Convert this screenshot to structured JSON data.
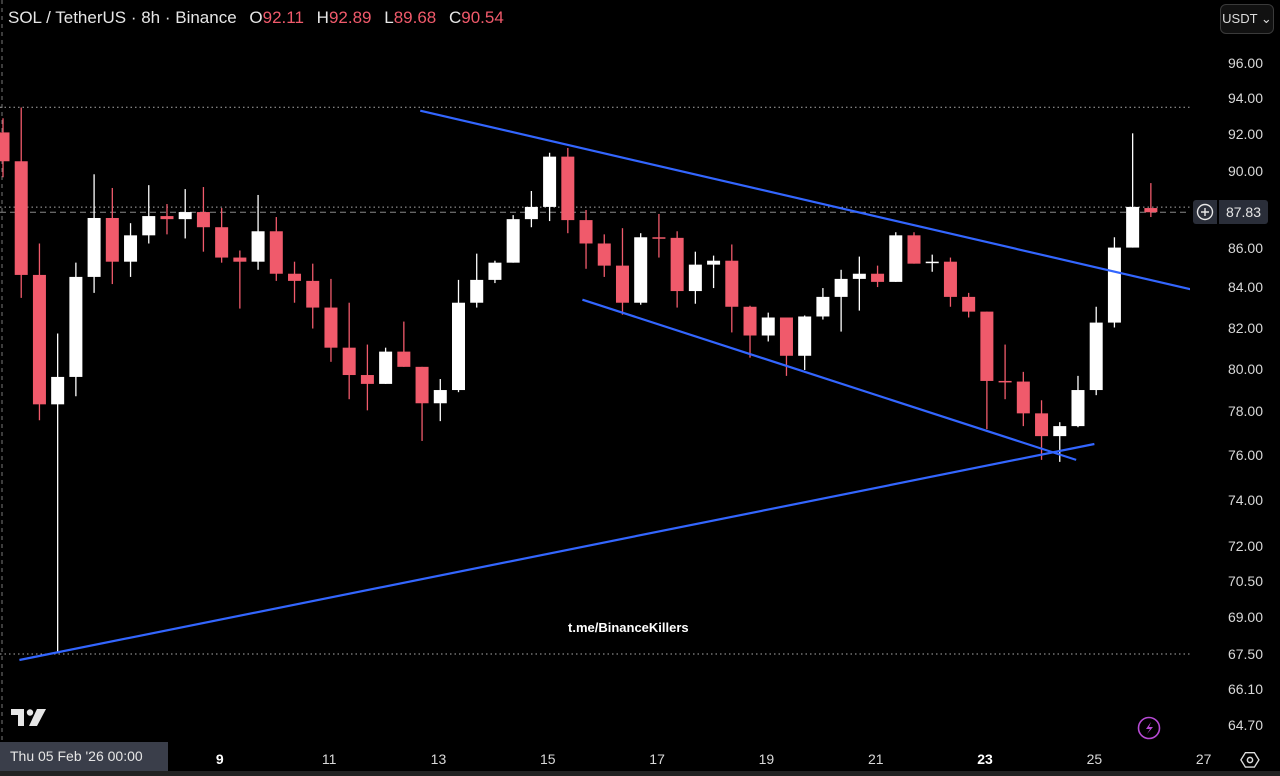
{
  "header": {
    "symbol": "SOL / TetherUS · 8h · Binance",
    "ohlc": [
      {
        "key": "O",
        "value": "92.11"
      },
      {
        "key": "H",
        "value": "92.89"
      },
      {
        "key": "L",
        "value": "89.68"
      },
      {
        "key": "C",
        "value": "90.54"
      }
    ]
  },
  "currency_button": "USDT ⌄",
  "last_price": "87.83",
  "crosshair_date": "Thu 05 Feb '26   00:00",
  "watermark": "t.me/BinanceKillers",
  "colors": {
    "up": "#ffffff",
    "down": "#f05a6b",
    "trendline": "#3366ff",
    "bolt": "#b84ad6"
  },
  "chart_data": {
    "type": "candlestick",
    "title": "SOL / TetherUS · 8h · Binance",
    "interval": "8h",
    "scale": "log",
    "ylim": [
      64.7,
      96
    ],
    "y_ticks": [
      "96.00",
      "94.00",
      "92.00",
      "90.00",
      "86.00",
      "84.00",
      "82.00",
      "80.00",
      "78.00",
      "76.00",
      "74.00",
      "72.00",
      "70.50",
      "69.00",
      "67.50",
      "66.10",
      "64.70"
    ],
    "x_ticks": [
      {
        "label": "9",
        "candle": 11.9,
        "bold": true
      },
      {
        "label": "11",
        "candle": 17.9
      },
      {
        "label": "13",
        "candle": 23.9
      },
      {
        "label": "15",
        "candle": 29.9
      },
      {
        "label": "17",
        "candle": 35.9
      },
      {
        "label": "19",
        "candle": 41.9
      },
      {
        "label": "21",
        "candle": 47.9
      },
      {
        "label": "23",
        "candle": 53.9,
        "bold": true
      },
      {
        "label": "25",
        "candle": 59.9
      },
      {
        "label": "27",
        "candle": 65.9
      }
    ],
    "candles_ohlc": [
      [
        92.11,
        92.89,
        89.68,
        90.54
      ],
      [
        90.54,
        93.49,
        83.46,
        84.61
      ],
      [
        84.61,
        86.21,
        77.59,
        78.33
      ],
      [
        78.33,
        81.71,
        67.54,
        79.62
      ],
      [
        79.62,
        85.23,
        78.71,
        84.51
      ],
      [
        84.51,
        89.84,
        83.71,
        87.53
      ],
      [
        87.53,
        89.11,
        84.15,
        85.28
      ],
      [
        85.28,
        87.26,
        84.51,
        86.63
      ],
      [
        86.63,
        89.26,
        86.21,
        87.63
      ],
      [
        87.63,
        88.26,
        86.68,
        87.47
      ],
      [
        87.47,
        89.05,
        86.47,
        87.84
      ],
      [
        87.84,
        89.16,
        85.79,
        87.05
      ],
      [
        87.05,
        88.05,
        85.23,
        85.49
      ],
      [
        85.49,
        85.85,
        82.93,
        85.28
      ],
      [
        85.28,
        88.74,
        84.87,
        86.84
      ],
      [
        86.84,
        87.58,
        84.31,
        84.67
      ],
      [
        84.67,
        85.28,
        83.22,
        84.31
      ],
      [
        84.31,
        85.18,
        81.95,
        82.98
      ],
      [
        82.98,
        84.41,
        80.34,
        81.02
      ],
      [
        81.02,
        83.22,
        78.57,
        79.71
      ],
      [
        79.71,
        81.17,
        78.05,
        79.29
      ],
      [
        79.29,
        81.02,
        79.29,
        80.83
      ],
      [
        80.83,
        82.29,
        80.1,
        80.1
      ],
      [
        80.1,
        80.1,
        76.64,
        78.38
      ],
      [
        78.38,
        79.52,
        77.55,
        79.0
      ],
      [
        79.0,
        84.36,
        78.9,
        83.22
      ],
      [
        83.22,
        85.69,
        82.98,
        84.36
      ],
      [
        84.36,
        85.33,
        84.2,
        85.23
      ],
      [
        85.23,
        87.68,
        85.23,
        87.47
      ],
      [
        87.47,
        88.95,
        87.05,
        88.11
      ],
      [
        88.11,
        91.0,
        87.37,
        90.79
      ],
      [
        90.79,
        91.26,
        86.74,
        87.42
      ],
      [
        87.42,
        87.95,
        84.92,
        86.21
      ],
      [
        86.21,
        86.68,
        84.51,
        85.08
      ],
      [
        85.08,
        87.0,
        82.63,
        83.22
      ],
      [
        83.22,
        86.74,
        83.12,
        86.53
      ],
      [
        86.53,
        87.74,
        85.49,
        86.5
      ],
      [
        86.5,
        86.84,
        82.98,
        83.8
      ],
      [
        83.8,
        85.79,
        83.17,
        85.13
      ],
      [
        85.13,
        85.59,
        83.95,
        85.33
      ],
      [
        85.33,
        86.16,
        81.76,
        83.02
      ],
      [
        83.02,
        83.07,
        80.54,
        81.61
      ],
      [
        81.61,
        82.73,
        81.32,
        82.49
      ],
      [
        82.49,
        82.49,
        79.67,
        80.63
      ],
      [
        80.63,
        82.59,
        79.95,
        82.54
      ],
      [
        82.54,
        83.95,
        82.39,
        83.51
      ],
      [
        83.51,
        84.87,
        81.8,
        84.41
      ],
      [
        84.41,
        85.54,
        82.83,
        84.67
      ],
      [
        84.67,
        85.08,
        84.0,
        84.26
      ],
      [
        84.26,
        86.79,
        84.26,
        86.63
      ],
      [
        86.63,
        86.79,
        85.18,
        85.18
      ],
      [
        85.23,
        85.64,
        84.77,
        85.28
      ],
      [
        85.28,
        85.49,
        83.02,
        83.51
      ],
      [
        83.51,
        83.71,
        82.49,
        82.78
      ],
      [
        82.78,
        82.78,
        77.18,
        79.43
      ],
      [
        79.43,
        81.17,
        78.57,
        79.4
      ],
      [
        79.4,
        79.86,
        77.32,
        77.91
      ],
      [
        77.91,
        78.52,
        75.78,
        76.86
      ],
      [
        76.86,
        77.5,
        75.69,
        77.32
      ],
      [
        77.32,
        79.67,
        77.27,
        79.0
      ],
      [
        79.0,
        83.02,
        78.76,
        82.24
      ],
      [
        82.24,
        86.53,
        82.0,
        86.0
      ],
      [
        86.0,
        92.06,
        86.0,
        88.11
      ],
      [
        88.05,
        89.37,
        87.58,
        87.83
      ]
    ],
    "trendlines": [
      {
        "name": "upper-channel",
        "from": {
          "candle": 22.9,
          "price": 93.31
        },
        "to": {
          "candle": 66.5,
          "price": 83.61
        }
      },
      {
        "name": "lower-channel",
        "from": {
          "candle": 31.8,
          "price": 83.37
        },
        "to": {
          "candle": 58.9,
          "price": 75.78
        }
      },
      {
        "name": "rising-support",
        "from": {
          "candle": 0.9,
          "price": 67.26
        },
        "to": {
          "candle": 59.9,
          "price": 76.5
        }
      }
    ],
    "horizontal_levels": [
      {
        "price": 93.5,
        "style": "dotted"
      },
      {
        "price": 88.1,
        "style": "dotted"
      },
      {
        "price": 87.83,
        "style": "dashed"
      },
      {
        "price": 67.5,
        "style": "dotted"
      }
    ]
  }
}
